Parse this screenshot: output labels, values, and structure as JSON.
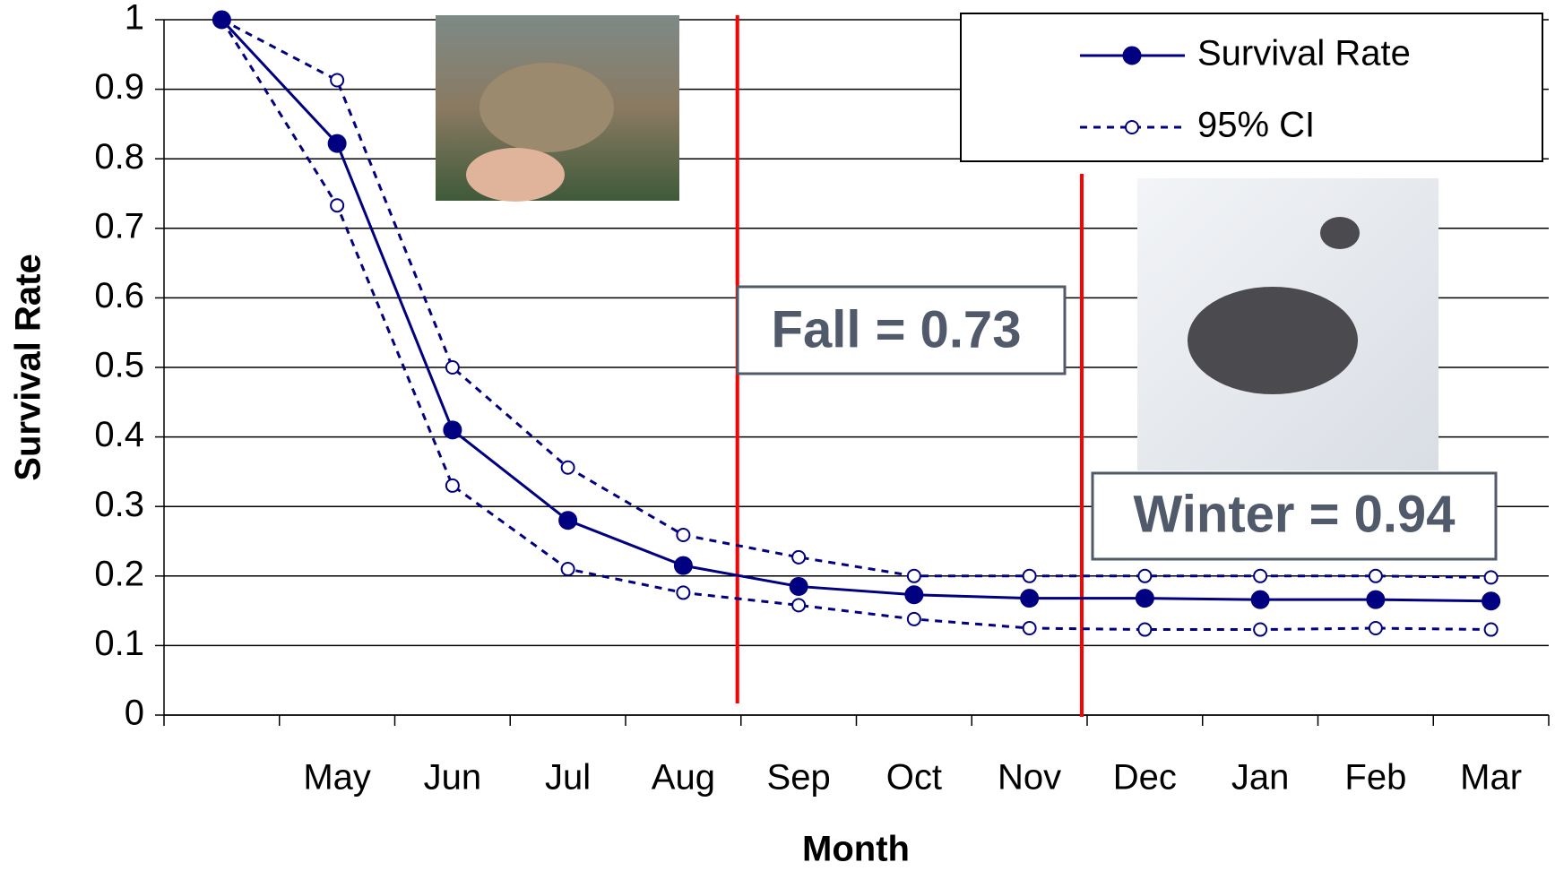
{
  "chart_data": {
    "type": "line",
    "x_label": "Month",
    "y_label": "Survival Rate",
    "categories": [
      null,
      "May",
      "Jun",
      "Jul",
      "Aug",
      "Sep",
      "Oct",
      "Nov",
      "Dec",
      "Jan",
      "Feb",
      "Mar"
    ],
    "series": [
      {
        "name": "Survival Rate",
        "color": "#000080",
        "values": [
          1,
          0.822,
          0.41,
          0.28,
          0.215,
          0.185,
          0.173,
          0.168,
          0.168,
          0.166,
          0.166,
          0.164
        ]
      }
    ],
    "ci": {
      "name": "95% CI",
      "color": "#000080",
      "upper": [
        1,
        0.913,
        0.5,
        0.356,
        0.259,
        0.227,
        0.2,
        0.2,
        0.2,
        0.2,
        0.2,
        0.198
      ],
      "lower": [
        1,
        0.733,
        0.33,
        0.21,
        0.176,
        0.158,
        0.138,
        0.125,
        0.123,
        0.123,
        0.125,
        0.123
      ]
    },
    "ylim": [
      0,
      1
    ],
    "yticks": [
      0,
      0.1,
      0.2,
      0.3,
      0.4,
      0.5,
      0.6,
      0.7,
      0.8,
      0.9,
      1
    ],
    "grid": true,
    "legend": "top-right",
    "annotations": [
      "Fall = 0.73",
      "Winter = 0.94"
    ]
  }
}
